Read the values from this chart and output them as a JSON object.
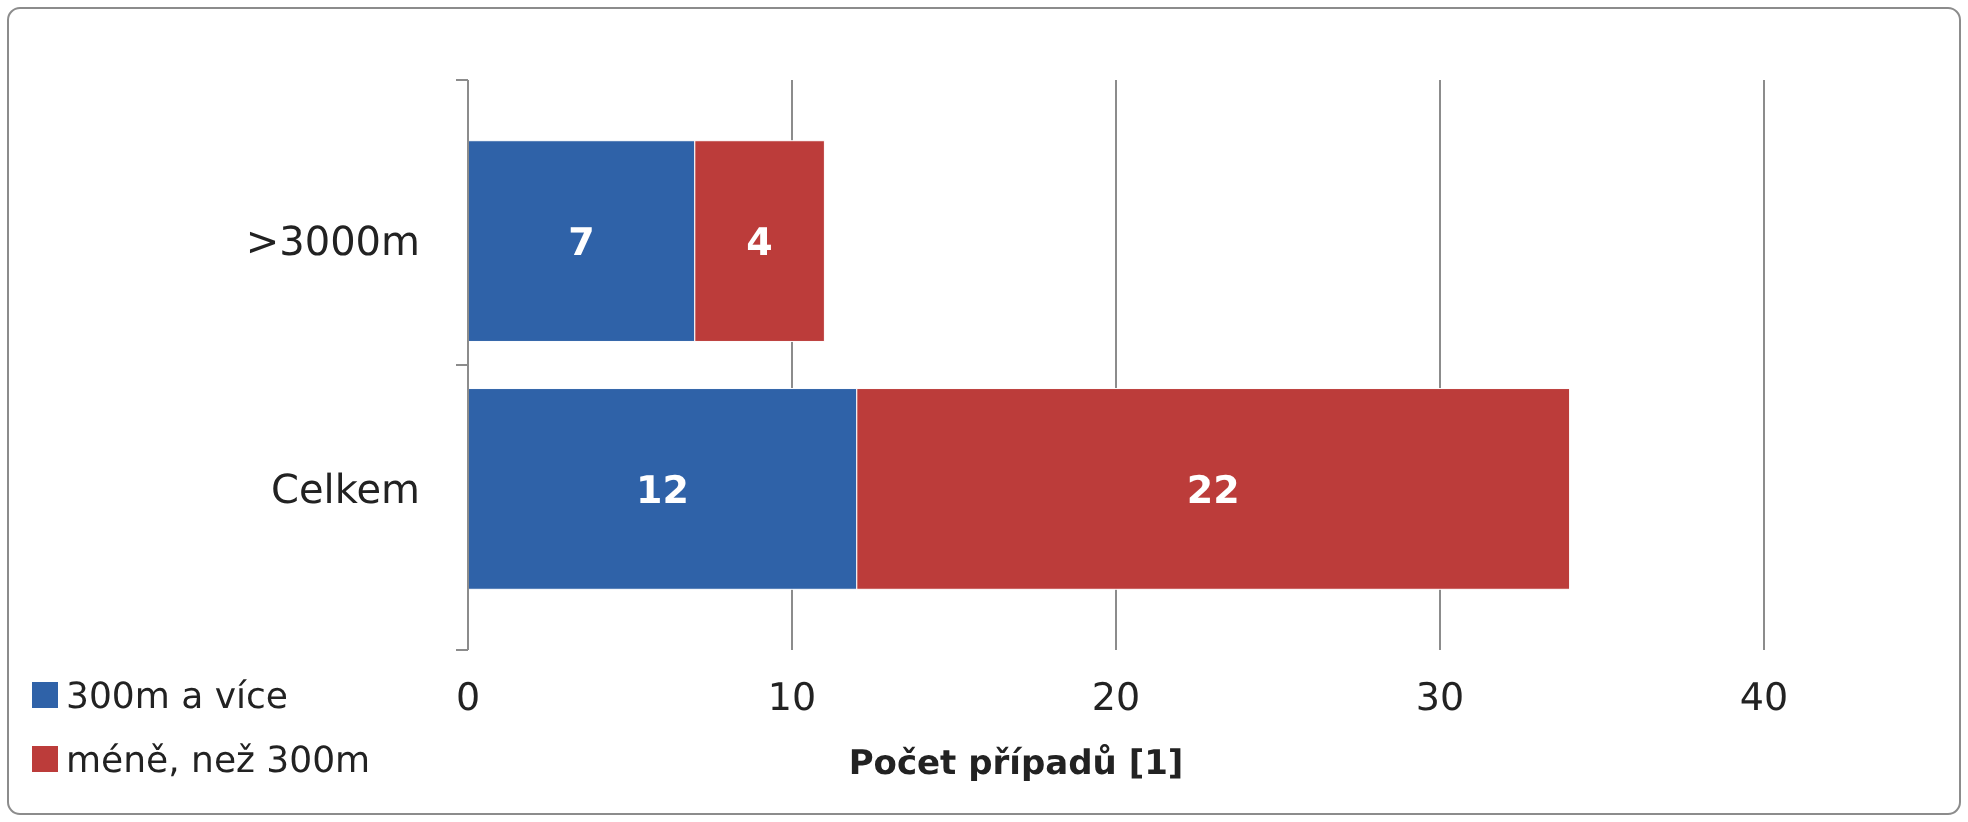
{
  "chart_data": {
    "type": "bar",
    "orientation": "horizontal",
    "stacked": true,
    "categories": [
      ">3000m",
      "Celkem"
    ],
    "series": [
      {
        "name": "300m a více",
        "color": "#2f62a8",
        "values": [
          7,
          12
        ]
      },
      {
        "name": "méně, než 300m",
        "color": "#bc3c3a",
        "values": [
          4,
          22
        ]
      }
    ],
    "xlim": [
      0,
      40
    ],
    "xticks": [
      0,
      10,
      20,
      30,
      40
    ],
    "xlabel": "Počet případů [1]",
    "grid": "x",
    "data_labels": true,
    "legend": "bottom left"
  }
}
